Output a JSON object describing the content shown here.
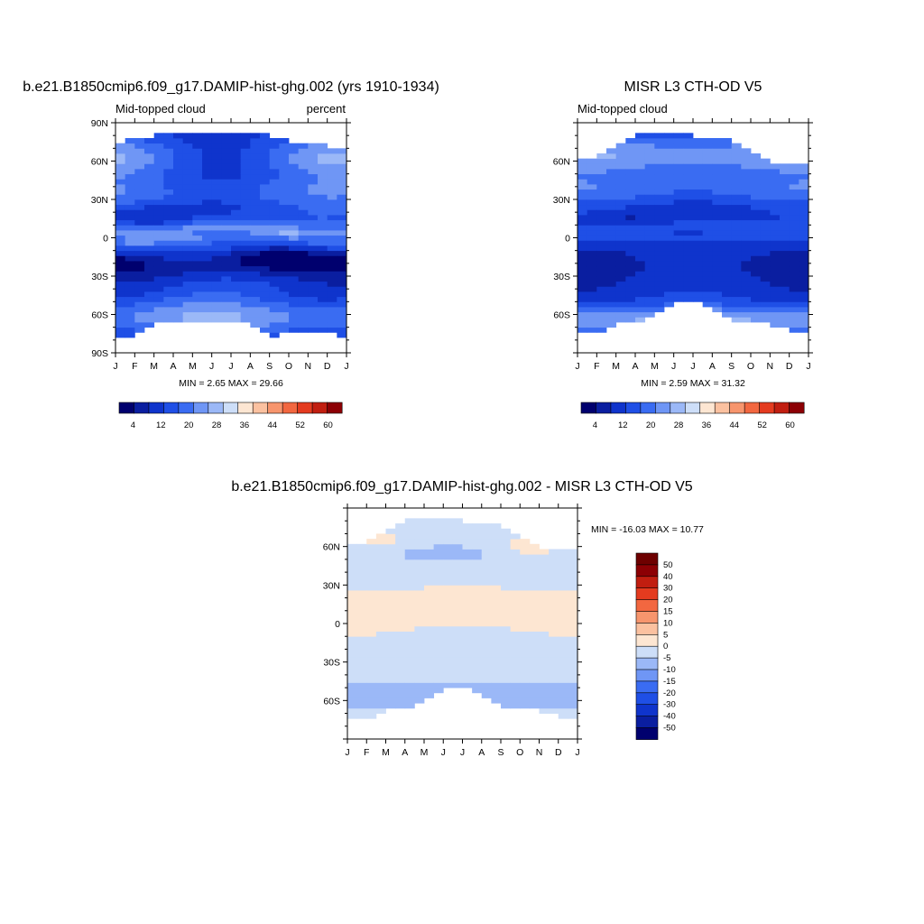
{
  "chart_data": [
    {
      "type": "heatmap",
      "title": "b.e21.B1850cmip6.f09_g17.DAMIP-hist-ghg.002 (yrs 1910-1934)",
      "left_label": "Mid-topped cloud",
      "right_label": "percent",
      "stats": "MIN =   2.65 MAX =  29.66",
      "x_ticks": [
        "J",
        "F",
        "M",
        "A",
        "M",
        "J",
        "J",
        "A",
        "S",
        "O",
        "N",
        "D",
        "J"
      ],
      "y_ticks": [
        {
          "v": 90,
          "label": "90N"
        },
        {
          "v": 60,
          "label": "60N"
        },
        {
          "v": 30,
          "label": "30N"
        },
        {
          "v": 0,
          "label": "0"
        },
        {
          "v": -30,
          "label": "30S"
        },
        {
          "v": -60,
          "label": "60S"
        },
        {
          "v": -90,
          "label": "90S"
        }
      ],
      "ylim": [
        -90,
        90
      ],
      "month_lat_min": [
        -77,
        -77,
        -67,
        -67,
        -67,
        -65,
        -65,
        -65,
        -77,
        -74,
        -74,
        -74,
        -77
      ],
      "month_lat_max": [
        72,
        78,
        80,
        80,
        82,
        82,
        81,
        81,
        80,
        75,
        72,
        72,
        67
      ],
      "colorbar_labels": [
        "4",
        "12",
        "20",
        "28",
        "36",
        "44",
        "52",
        "60"
      ],
      "colorbar_ticks": [
        4,
        12,
        20,
        28,
        36,
        44,
        52,
        60
      ],
      "colorbar_range": [
        0,
        64
      ],
      "colors": [
        "#00006e",
        "#0a1ea0",
        "#0f34cc",
        "#1f4fe6",
        "#3a6cf2",
        "#6f96f5",
        "#9bb8f7",
        "#cddef8",
        "#fde6d2",
        "#fbc1a0",
        "#f7956d",
        "#f26740",
        "#e43b1f",
        "#c11e10",
        "#8c0004"
      ]
    },
    {
      "type": "heatmap",
      "title": "MISR L3 CTH-OD V5",
      "left_label": "Mid-topped cloud",
      "stats": "MIN =   2.59 MAX =  31.32",
      "x_ticks": [
        "J",
        "F",
        "M",
        "A",
        "M",
        "J",
        "J",
        "A",
        "S",
        "O",
        "N",
        "D",
        "J"
      ],
      "y_ticks": [
        {
          "v": 60,
          "label": "60N"
        },
        {
          "v": 30,
          "label": "30N"
        },
        {
          "v": 0,
          "label": "0"
        },
        {
          "v": -30,
          "label": "30S"
        },
        {
          "v": -60,
          "label": "60S"
        }
      ],
      "ylim": [
        -90,
        90
      ],
      "month_lat_min": [
        -76,
        -74,
        -66,
        -66,
        -62,
        -50,
        -50,
        -55,
        -64,
        -66,
        -68,
        -72,
        -76
      ],
      "month_lat_max": [
        60,
        62,
        72,
        80,
        80,
        80,
        80,
        79,
        75,
        70,
        57,
        57,
        56
      ],
      "colorbar_labels": [
        "4",
        "12",
        "20",
        "28",
        "36",
        "44",
        "52",
        "60"
      ],
      "colorbar_ticks": [
        4,
        12,
        20,
        28,
        36,
        44,
        52,
        60
      ],
      "colorbar_range": [
        0,
        64
      ],
      "colors": [
        "#00006e",
        "#0a1ea0",
        "#0f34cc",
        "#1f4fe6",
        "#3a6cf2",
        "#6f96f5",
        "#9bb8f7",
        "#cddef8",
        "#fde6d2",
        "#fbc1a0",
        "#f7956d",
        "#f26740",
        "#e43b1f",
        "#c11e10",
        "#8c0004"
      ]
    },
    {
      "type": "heatmap",
      "title": "b.e21.B1850cmip6.f09_g17.DAMIP-hist-ghg.002 - MISR L3 CTH-OD V5",
      "stats": "MIN = -16.03 MAX =  10.77",
      "x_ticks": [
        "J",
        "F",
        "M",
        "A",
        "M",
        "J",
        "J",
        "A",
        "S",
        "O",
        "N",
        "D",
        "J"
      ],
      "y_ticks": [
        {
          "v": 60,
          "label": "60N"
        },
        {
          "v": 30,
          "label": "30N"
        },
        {
          "v": 0,
          "label": "0"
        },
        {
          "v": -30,
          "label": "30S"
        },
        {
          "v": -60,
          "label": "60S"
        }
      ],
      "ylim": [
        -90,
        90
      ],
      "month_lat_min": [
        -76,
        -74,
        -66,
        -66,
        -62,
        -50,
        -50,
        -55,
        -64,
        -66,
        -68,
        -72,
        -76
      ],
      "month_lat_max": [
        60,
        62,
        72,
        80,
        80,
        80,
        80,
        79,
        75,
        70,
        57,
        57,
        56
      ],
      "colorbar_labels": [
        "50",
        "40",
        "30",
        "20",
        "15",
        "10",
        "5",
        "0",
        "-5",
        "-10",
        "-15",
        "-20",
        "-30",
        "-40",
        "-50"
      ],
      "colors": [
        "#00006e",
        "#0a1ea0",
        "#0f34cc",
        "#1f4fe6",
        "#3a6cf2",
        "#6f96f5",
        "#9bb8f7",
        "#cddef8",
        "#fde6d2",
        "#fbc1a0",
        "#f7956d",
        "#f26740",
        "#e43b1f",
        "#c11e10",
        "#8c0004",
        "#6e0000"
      ]
    }
  ]
}
